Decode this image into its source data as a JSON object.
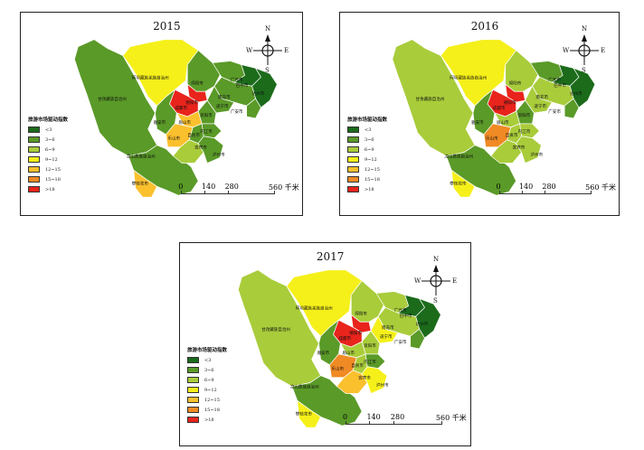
{
  "colors": {
    "lt3": "#1b6b1b",
    "3to6": "#5a9a28",
    "6to9": "#a9cc3b",
    "9to12": "#f5f01a",
    "12to15": "#fbc02d",
    "15to18": "#f08a24",
    "gt18": "#e8241c"
  },
  "legend": {
    "title": "旅游市场驱动指数",
    "items": [
      {
        "label": "<3",
        "color_key": "lt3"
      },
      {
        "label": "3~6",
        "color_key": "3to6"
      },
      {
        "label": "6~9",
        "color_key": "6to9"
      },
      {
        "label": "9~12",
        "color_key": "9to12"
      },
      {
        "label": "12~15",
        "color_key": "12to15"
      },
      {
        "label": "15~18",
        "color_key": "15to18"
      },
      {
        "label": ">18",
        "color_key": "gt18"
      }
    ]
  },
  "scale": {
    "ticks": [
      "0",
      "140",
      "280"
    ],
    "last": "560",
    "unit": "千米"
  },
  "compass": {
    "n": "N",
    "s": "S",
    "e": "E",
    "w": "W"
  },
  "regions": {
    "aba": "阿坝藏族羌族自治州",
    "ganzi": "甘孜藏族自治州",
    "liangshan": "凉山彝族自治州",
    "panzhihua": "攀枝花市",
    "mianyang": "绵阳市",
    "guangyuan": "广元市",
    "bazhong": "巴中市",
    "dazhou": "达州市",
    "nanchong": "南充市",
    "guangan": "广安市",
    "deyang": "德阳市",
    "chengdu": "成都市",
    "suining": "遂宁市",
    "ziyang": "资阳市",
    "yaan": "雅安市",
    "meishan": "眉山市",
    "neijiang": "内江市",
    "zigong": "自贡市",
    "leshan": "乐山市",
    "yibin": "宜宾市",
    "luzhou": "泸州市"
  },
  "maps": [
    {
      "year": "2015",
      "fills": {
        "ganzi": "3to6",
        "aba": "9to12",
        "liangshan": "3to6",
        "panzhihua": "12to15",
        "mianyang": "3to6",
        "guangyuan": "3to6",
        "bazhong": "lt3",
        "dazhou": "lt3",
        "nanchong": "3to6",
        "guangan": "3to6",
        "deyang": "gt18",
        "chengdu": "gt18",
        "suining": "3to6",
        "ziyang": "3to6",
        "yaan": "3to6",
        "meishan": "12to15",
        "neijiang": "3to6",
        "zigong": "3to6",
        "leshan": "12to15",
        "yibin": "6to9",
        "luzhou": "3to6"
      }
    },
    {
      "year": "2016",
      "fills": {
        "ganzi": "6to9",
        "aba": "9to12",
        "liangshan": "3to6",
        "panzhihua": "9to12",
        "mianyang": "6to9",
        "guangyuan": "3to6",
        "bazhong": "lt3",
        "dazhou": "lt3",
        "nanchong": "6to9",
        "guangan": "3to6",
        "deyang": "gt18",
        "chengdu": "gt18",
        "suining": "6to9",
        "ziyang": "3to6",
        "yaan": "3to6",
        "meishan": "6to9",
        "neijiang": "6to9",
        "zigong": "6to9",
        "leshan": "15to18",
        "yibin": "6to9",
        "luzhou": "6to9"
      }
    },
    {
      "year": "2017",
      "fills": {
        "ganzi": "6to9",
        "aba": "9to12",
        "liangshan": "3to6",
        "panzhihua": "9to12",
        "mianyang": "6to9",
        "guangyuan": "6to9",
        "bazhong": "lt3",
        "dazhou": "lt3",
        "nanchong": "6to9",
        "guangan": "3to6",
        "deyang": "gt18",
        "chengdu": "gt18",
        "suining": "9to12",
        "ziyang": "6to9",
        "yaan": "3to6",
        "meishan": "6to9",
        "neijiang": "3to6",
        "zigong": "6to9",
        "leshan": "15to18",
        "yibin": "12to15",
        "luzhou": "9to12"
      }
    }
  ]
}
